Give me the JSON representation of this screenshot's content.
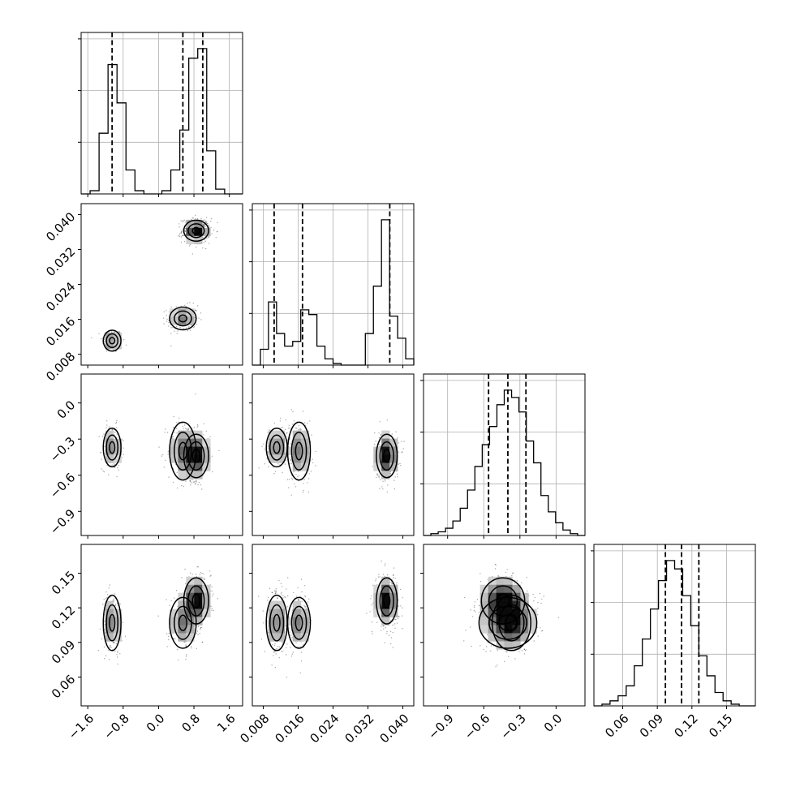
{
  "chart_data": {
    "type": "corner",
    "quantiles": [
      0.16,
      0.5,
      0.84
    ],
    "grid": true,
    "parameters": [
      {
        "range": [
          -1.75,
          1.9
        ],
        "ticks": [
          -1.6,
          -0.8,
          0.0,
          0.8,
          1.6
        ],
        "tick_labels": [
          "−1.6",
          "−0.8",
          "0.0",
          "0.8",
          "1.6"
        ],
        "clusters": [
          {
            "mean": -1.05,
            "sd": 0.1
          },
          {
            "mean": 0.55,
            "sd": 0.15
          },
          {
            "mean": 0.85,
            "sd": 0.14
          }
        ]
      },
      {
        "range": [
          0.0055,
          0.0425
        ],
        "ticks": [
          0.008,
          0.016,
          0.024,
          0.032,
          0.04
        ],
        "tick_labels": [
          "0.008",
          "0.016",
          "0.024",
          "0.032",
          "0.040"
        ],
        "clusters": [
          {
            "mean": 0.0111,
            "sd": 0.0012
          },
          {
            "mean": 0.0162,
            "sd": 0.0013
          },
          {
            "mean": 0.0363,
            "sd": 0.0012
          }
        ]
      },
      {
        "range": [
          -1.1,
          0.24
        ],
        "ticks": [
          -0.9,
          -0.6,
          -0.3,
          0.0
        ],
        "tick_labels": [
          "−0.9",
          "−0.6",
          "−0.3",
          "0.0"
        ],
        "clusters": [
          {
            "mean": -0.37,
            "sd": 0.08
          },
          {
            "mean": -0.4,
            "sd": 0.12
          },
          {
            "mean": -0.44,
            "sd": 0.09
          }
        ]
      },
      {
        "range": [
          0.035,
          0.175
        ],
        "ticks": [
          0.06,
          0.09,
          0.12,
          0.15
        ],
        "tick_labels": [
          "0.06",
          "0.09",
          "0.12",
          "0.15"
        ],
        "clusters": [
          {
            "mean": 0.107,
            "sd": 0.012
          },
          {
            "mean": 0.107,
            "sd": 0.011
          },
          {
            "mean": 0.126,
            "sd": 0.01
          }
        ]
      }
    ],
    "cluster_weights": [
      0.25,
      0.25,
      0.5
    ],
    "histograms": [
      {
        "counts": [
          0,
          2,
          38,
          81,
          57,
          15,
          2,
          0,
          0,
          2,
          15,
          40,
          85,
          91,
          27,
          3,
          0,
          0
        ],
        "quantile_lines": [
          -1.05,
          0.55,
          1.0
        ]
      },
      {
        "counts": [
          0,
          10,
          40,
          20,
          12,
          15,
          35,
          32,
          12,
          4,
          1,
          0,
          0,
          0,
          20,
          50,
          92,
          31,
          17,
          4
        ],
        "quantile_lines": [
          0.0105,
          0.017,
          0.037
        ]
      },
      {
        "counts": [
          0,
          1,
          2,
          4,
          8,
          15,
          25,
          38,
          50,
          60,
          72,
          80,
          76,
          68,
          52,
          40,
          22,
          13,
          7,
          3,
          1,
          0
        ],
        "quantile_lines": [
          -0.56,
          -0.4,
          -0.25
        ]
      },
      {
        "counts": [
          0,
          1,
          3,
          6,
          12,
          24,
          40,
          58,
          75,
          87,
          82,
          66,
          48,
          30,
          18,
          8,
          3,
          1,
          0,
          0
        ],
        "quantile_lines": [
          0.097,
          0.111,
          0.126
        ]
      }
    ]
  }
}
